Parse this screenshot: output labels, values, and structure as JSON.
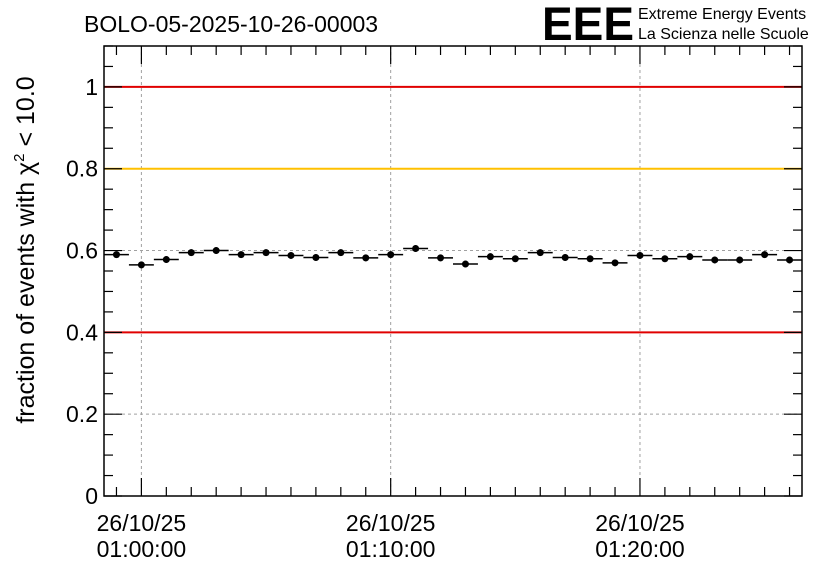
{
  "chart_data": {
    "type": "scatter",
    "title": "BOLO-05-2025-10-26-00003",
    "ylabel": "fraction of events with χ² < 10.0",
    "ylabel_parts": {
      "prefix": "fraction of events with ",
      "symbol": "χ",
      "superscript": "2",
      "suffix": " < 10.0"
    },
    "xlabel": "",
    "ylim": [
      0,
      1.1
    ],
    "xlim_minutes": [
      -1.5,
      26.5
    ],
    "y_ticks": [
      0,
      0.2,
      0.4,
      0.6,
      0.8,
      1
    ],
    "y_tick_labels": [
      "0",
      "0.2",
      "0.4",
      "0.6",
      "0.8",
      "1"
    ],
    "x_ticks_minutes": [
      0,
      10,
      20
    ],
    "x_tick_labels": [
      {
        "date": "26/10/25",
        "time": "01:00:00"
      },
      {
        "date": "26/10/25",
        "time": "01:10:00"
      },
      {
        "date": "26/10/25",
        "time": "01:20:00"
      }
    ],
    "grid": true,
    "reference_lines": [
      {
        "y": 1.0,
        "color": "#e00000"
      },
      {
        "y": 0.8,
        "color": "#ffc000"
      },
      {
        "y": 0.4,
        "color": "#e00000"
      }
    ],
    "bin_width_minutes": 1,
    "points": {
      "x_minutes": [
        -1,
        0,
        1,
        2,
        3,
        4,
        5,
        6,
        7,
        8,
        9,
        10,
        11,
        12,
        13,
        14,
        15,
        16,
        17,
        18,
        19,
        20,
        21,
        22,
        23,
        24,
        25,
        26
      ],
      "y": [
        0.59,
        0.565,
        0.578,
        0.595,
        0.6,
        0.59,
        0.595,
        0.588,
        0.583,
        0.595,
        0.582,
        0.59,
        0.605,
        0.582,
        0.567,
        0.585,
        0.58,
        0.595,
        0.583,
        0.58,
        0.57,
        0.588,
        0.58,
        0.585,
        0.577,
        0.577,
        0.59,
        0.577
      ],
      "yerr": [
        0.008,
        0.008,
        0.008,
        0.008,
        0.008,
        0.008,
        0.008,
        0.008,
        0.008,
        0.008,
        0.008,
        0.008,
        0.008,
        0.008,
        0.008,
        0.008,
        0.008,
        0.008,
        0.008,
        0.008,
        0.008,
        0.008,
        0.008,
        0.008,
        0.008,
        0.008,
        0.008,
        0.008
      ]
    }
  },
  "logo": {
    "mark": "EEE",
    "line1": "Extreme Energy Events",
    "line2": "La Scienza nelle Scuole",
    "color": "#1a1aff"
  },
  "colors": {
    "grid": "#a0a0a0",
    "markers": "#000000"
  }
}
